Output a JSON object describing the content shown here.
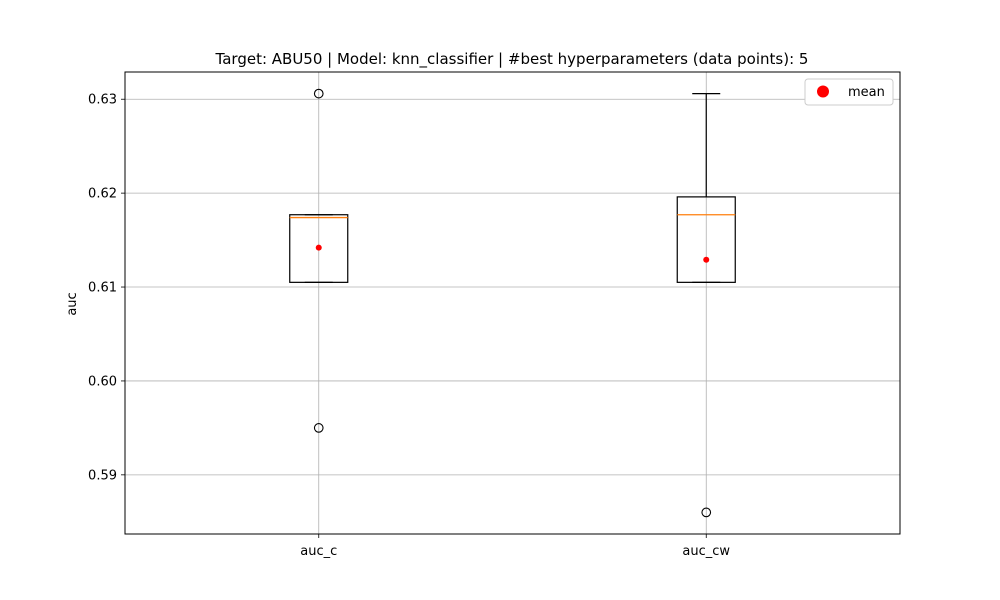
{
  "chart_data": {
    "type": "boxplot",
    "title": "Target: ABU50 | Model: knn_classifier | #best hyperparameters (data points): 5",
    "xlabel": "",
    "ylabel": "auc",
    "categories": [
      "auc_c",
      "auc_cw"
    ],
    "ylim": [
      0.5837,
      0.6329
    ],
    "yticks": [
      0.59,
      0.6,
      0.61,
      0.62,
      0.63
    ],
    "ytick_labels": [
      "0.59",
      "0.60",
      "0.61",
      "0.62",
      "0.63"
    ],
    "grid": true,
    "legend": {
      "placement": "top-right",
      "entries": [
        "mean"
      ]
    },
    "boxes": [
      {
        "category": "auc_c",
        "whislo": 0.6105,
        "q1": 0.6105,
        "med": 0.6174,
        "q3": 0.6177,
        "whishi": 0.6177,
        "mean": 0.6142,
        "fliers": [
          0.6306,
          0.595
        ]
      },
      {
        "category": "auc_cw",
        "whislo": 0.6105,
        "q1": 0.6105,
        "med": 0.6177,
        "q3": 0.6196,
        "whishi": 0.6306,
        "mean": 0.6129,
        "fliers": [
          0.586
        ]
      }
    ],
    "colors": {
      "box": "#000000",
      "median": "#ff7f0e",
      "mean": "#ff0000",
      "grid": "#b0b0b0"
    }
  }
}
